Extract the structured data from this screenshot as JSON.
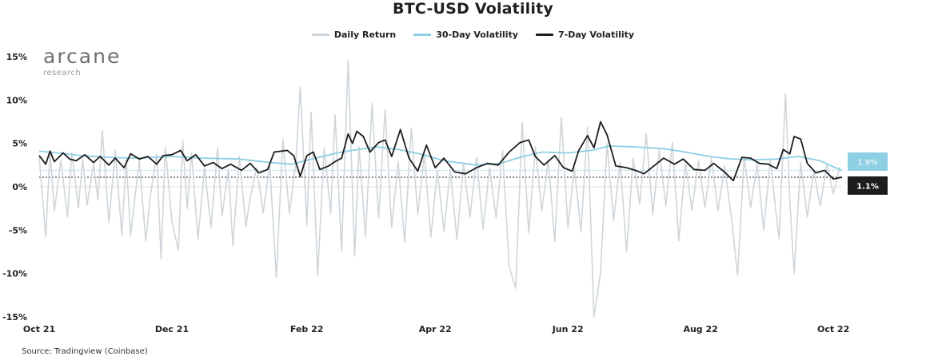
{
  "chart_data": {
    "type": "line",
    "title": "BTC-USD Volatility",
    "source": "Source: Tradingview (Coinbase)",
    "logo": {
      "name": "arcane",
      "sub": "research"
    },
    "colors": {
      "daily": "#cfd6db",
      "vol30": "#8ecfe3",
      "vol7": "#1d1d1d"
    },
    "x_ticks": [
      "Oct 21",
      "Dec 21",
      "Feb 22",
      "Apr 22",
      "Jun 22",
      "Aug 22",
      "Oct 22"
    ],
    "y_ticks": [
      "15%",
      "10%",
      "5%",
      "0%",
      "-5%",
      "-10%",
      "-15%"
    ],
    "ylim": [
      -15,
      15
    ],
    "x_range": [
      "2021-10-01",
      "2022-10-05"
    ],
    "legend_placement": "top-center",
    "series": [
      {
        "name": "Daily Return",
        "points": [
          [
            "2021-10-01",
            3.5
          ],
          [
            "2021-10-04",
            -5.8
          ],
          [
            "2021-10-06",
            4.2
          ],
          [
            "2021-10-08",
            -2.8
          ],
          [
            "2021-10-11",
            3.1
          ],
          [
            "2021-10-14",
            -3.5
          ],
          [
            "2021-10-16",
            4.0
          ],
          [
            "2021-10-19",
            -2.4
          ],
          [
            "2021-10-21",
            3.2
          ],
          [
            "2021-10-23",
            -2.1
          ],
          [
            "2021-10-26",
            2.6
          ],
          [
            "2021-10-28",
            -1.5
          ],
          [
            "2021-10-30",
            6.5
          ],
          [
            "2021-11-02",
            -4.1
          ],
          [
            "2021-11-05",
            4.2
          ],
          [
            "2021-11-08",
            -5.6
          ],
          [
            "2021-11-10",
            3.3
          ],
          [
            "2021-11-12",
            -5.6
          ],
          [
            "2021-11-16",
            3.1
          ],
          [
            "2021-11-19",
            -6.3
          ],
          [
            "2021-11-21",
            -1.2
          ],
          [
            "2021-11-24",
            3.8
          ],
          [
            "2021-11-26",
            -8.3
          ],
          [
            "2021-11-28",
            4.6
          ],
          [
            "2021-12-01",
            -4.0
          ],
          [
            "2021-12-04",
            -7.3
          ],
          [
            "2021-12-06",
            5.3
          ],
          [
            "2021-12-08",
            -2.5
          ],
          [
            "2021-12-10",
            3.9
          ],
          [
            "2021-12-13",
            -6.0
          ],
          [
            "2021-12-16",
            2.2
          ],
          [
            "2021-12-19",
            -4.7
          ],
          [
            "2021-12-22",
            4.5
          ],
          [
            "2021-12-24",
            -3.4
          ],
          [
            "2021-12-27",
            2.1
          ],
          [
            "2021-12-29",
            -6.8
          ],
          [
            "2022-01-01",
            3.5
          ],
          [
            "2022-01-04",
            -4.6
          ],
          [
            "2022-01-06",
            -1.2
          ],
          [
            "2022-01-09",
            2.2
          ],
          [
            "2022-01-12",
            -3.0
          ],
          [
            "2022-01-15",
            2.5
          ],
          [
            "2022-01-18",
            -10.5
          ],
          [
            "2022-01-21",
            5.5
          ],
          [
            "2022-01-24",
            -3.1
          ],
          [
            "2022-01-27",
            3.0
          ],
          [
            "2022-01-29",
            11.5
          ],
          [
            "2022-02-01",
            -4.4
          ],
          [
            "2022-02-03",
            8.6
          ],
          [
            "2022-02-06",
            -10.2
          ],
          [
            "2022-02-09",
            4.5
          ],
          [
            "2022-02-12",
            -3.1
          ],
          [
            "2022-02-14",
            8.3
          ],
          [
            "2022-02-17",
            -7.4
          ],
          [
            "2022-02-20",
            14.5
          ],
          [
            "2022-02-23",
            -8.0
          ],
          [
            "2022-02-25",
            4.6
          ],
          [
            "2022-02-28",
            -5.8
          ],
          [
            "2022-03-03",
            9.6
          ],
          [
            "2022-03-06",
            -3.6
          ],
          [
            "2022-03-09",
            8.9
          ],
          [
            "2022-03-12",
            -4.7
          ],
          [
            "2022-03-15",
            2.9
          ],
          [
            "2022-03-18",
            -6.4
          ],
          [
            "2022-03-21",
            6.8
          ],
          [
            "2022-03-24",
            -3.2
          ],
          [
            "2022-03-27",
            3.7
          ],
          [
            "2022-03-30",
            -5.8
          ],
          [
            "2022-04-02",
            1.9
          ],
          [
            "2022-04-05",
            -5.1
          ],
          [
            "2022-04-08",
            2.0
          ],
          [
            "2022-04-11",
            -6.1
          ],
          [
            "2022-04-14",
            2.6
          ],
          [
            "2022-04-17",
            -3.5
          ],
          [
            "2022-04-20",
            3.4
          ],
          [
            "2022-04-23",
            -4.9
          ],
          [
            "2022-04-26",
            2.2
          ],
          [
            "2022-04-29",
            -3.6
          ],
          [
            "2022-05-02",
            4.2
          ],
          [
            "2022-05-05",
            -9.2
          ],
          [
            "2022-05-08",
            -11.7
          ],
          [
            "2022-05-11",
            7.4
          ],
          [
            "2022-05-14",
            -5.3
          ],
          [
            "2022-05-17",
            4.6
          ],
          [
            "2022-05-20",
            -2.8
          ],
          [
            "2022-05-23",
            3.1
          ],
          [
            "2022-05-26",
            -6.3
          ],
          [
            "2022-05-29",
            8.0
          ],
          [
            "2022-06-01",
            -4.7
          ],
          [
            "2022-06-04",
            2.2
          ],
          [
            "2022-06-07",
            -5.2
          ],
          [
            "2022-06-10",
            6.9
          ],
          [
            "2022-06-13",
            -15.0
          ],
          [
            "2022-06-16",
            -9.9
          ],
          [
            "2022-06-19",
            5.0
          ],
          [
            "2022-06-22",
            -3.9
          ],
          [
            "2022-06-25",
            2.8
          ],
          [
            "2022-06-28",
            -7.5
          ],
          [
            "2022-07-01",
            3.3
          ],
          [
            "2022-07-04",
            -2.0
          ],
          [
            "2022-07-07",
            6.1
          ],
          [
            "2022-07-10",
            -3.2
          ],
          [
            "2022-07-13",
            4.3
          ],
          [
            "2022-07-16",
            -2.2
          ],
          [
            "2022-07-19",
            5.1
          ],
          [
            "2022-07-22",
            -6.2
          ],
          [
            "2022-07-25",
            2.8
          ],
          [
            "2022-07-28",
            -2.7
          ],
          [
            "2022-07-31",
            3.0
          ],
          [
            "2022-08-03",
            -2.4
          ],
          [
            "2022-08-06",
            3.3
          ],
          [
            "2022-08-09",
            -2.8
          ],
          [
            "2022-08-12",
            2.4
          ],
          [
            "2022-08-15",
            -3.2
          ],
          [
            "2022-08-18",
            -10.2
          ],
          [
            "2022-08-21",
            3.4
          ],
          [
            "2022-08-24",
            -2.4
          ],
          [
            "2022-08-27",
            2.7
          ],
          [
            "2022-08-30",
            -5.0
          ],
          [
            "2022-09-02",
            3.1
          ],
          [
            "2022-09-06",
            -6.0
          ],
          [
            "2022-09-09",
            10.7
          ],
          [
            "2022-09-11",
            -1.6
          ],
          [
            "2022-09-13",
            -10.0
          ],
          [
            "2022-09-16",
            2.8
          ],
          [
            "2022-09-19",
            -3.5
          ],
          [
            "2022-09-22",
            1.9
          ],
          [
            "2022-09-25",
            -2.2
          ],
          [
            "2022-09-28",
            2.6
          ],
          [
            "2022-10-01",
            -0.8
          ],
          [
            "2022-10-04",
            2.3
          ]
        ]
      },
      {
        "name": "30-Day Volatility",
        "points": [
          [
            "2021-10-01",
            4.1
          ],
          [
            "2021-10-10",
            3.9
          ],
          [
            "2021-10-20",
            3.6
          ],
          [
            "2021-11-01",
            3.4
          ],
          [
            "2021-11-15",
            3.3
          ],
          [
            "2021-12-01",
            3.5
          ],
          [
            "2021-12-15",
            3.3
          ],
          [
            "2022-01-01",
            3.2
          ],
          [
            "2022-01-15",
            2.8
          ],
          [
            "2022-01-25",
            2.6
          ],
          [
            "2022-02-05",
            3.3
          ],
          [
            "2022-02-15",
            3.9
          ],
          [
            "2022-02-22",
            4.2
          ],
          [
            "2022-03-05",
            4.6
          ],
          [
            "2022-03-15",
            4.3
          ],
          [
            "2022-03-25",
            3.8
          ],
          [
            "2022-04-05",
            3.0
          ],
          [
            "2022-04-20",
            2.5
          ],
          [
            "2022-05-01",
            2.7
          ],
          [
            "2022-05-10",
            3.4
          ],
          [
            "2022-05-20",
            4.0
          ],
          [
            "2022-06-01",
            3.9
          ],
          [
            "2022-06-12",
            4.2
          ],
          [
            "2022-06-20",
            4.7
          ],
          [
            "2022-07-01",
            4.6
          ],
          [
            "2022-07-15",
            4.4
          ],
          [
            "2022-07-25",
            4.0
          ],
          [
            "2022-08-05",
            3.5
          ],
          [
            "2022-08-15",
            3.2
          ],
          [
            "2022-08-25",
            3.1
          ],
          [
            "2022-09-05",
            3.2
          ],
          [
            "2022-09-15",
            3.5
          ],
          [
            "2022-09-25",
            3.0
          ],
          [
            "2022-10-01",
            2.3
          ],
          [
            "2022-10-05",
            1.9
          ]
        ]
      },
      {
        "name": "7-Day Volatility",
        "points": [
          [
            "2021-10-01",
            3.6
          ],
          [
            "2021-10-04",
            2.6
          ],
          [
            "2021-10-06",
            4.1
          ],
          [
            "2021-10-08",
            2.9
          ],
          [
            "2021-10-12",
            3.9
          ],
          [
            "2021-10-15",
            3.2
          ],
          [
            "2021-10-18",
            3.0
          ],
          [
            "2021-10-22",
            3.7
          ],
          [
            "2021-10-26",
            2.8
          ],
          [
            "2021-10-29",
            3.5
          ],
          [
            "2021-11-02",
            2.5
          ],
          [
            "2021-11-05",
            3.3
          ],
          [
            "2021-11-09",
            2.2
          ],
          [
            "2021-11-12",
            3.8
          ],
          [
            "2021-11-16",
            3.2
          ],
          [
            "2021-11-20",
            3.5
          ],
          [
            "2021-11-24",
            2.6
          ],
          [
            "2021-11-27",
            3.6
          ],
          [
            "2021-12-01",
            3.7
          ],
          [
            "2021-12-05",
            4.2
          ],
          [
            "2021-12-08",
            3.0
          ],
          [
            "2021-12-12",
            3.7
          ],
          [
            "2021-12-16",
            2.4
          ],
          [
            "2021-12-20",
            2.8
          ],
          [
            "2021-12-24",
            2.1
          ],
          [
            "2021-12-28",
            2.6
          ],
          [
            "2022-01-02",
            1.9
          ],
          [
            "2022-01-06",
            2.7
          ],
          [
            "2022-01-10",
            1.6
          ],
          [
            "2022-01-14",
            2.0
          ],
          [
            "2022-01-17",
            4.0
          ],
          [
            "2022-01-23",
            4.2
          ],
          [
            "2022-01-26",
            3.6
          ],
          [
            "2022-01-29",
            1.2
          ],
          [
            "2022-02-01",
            3.6
          ],
          [
            "2022-02-04",
            4.0
          ],
          [
            "2022-02-07",
            2.0
          ],
          [
            "2022-02-11",
            2.4
          ],
          [
            "2022-02-14",
            2.9
          ],
          [
            "2022-02-17",
            3.3
          ],
          [
            "2022-02-20",
            6.1
          ],
          [
            "2022-02-22",
            5.0
          ],
          [
            "2022-02-24",
            6.4
          ],
          [
            "2022-02-27",
            5.8
          ],
          [
            "2022-03-02",
            4.0
          ],
          [
            "2022-03-06",
            5.1
          ],
          [
            "2022-03-09",
            5.4
          ],
          [
            "2022-03-12",
            3.5
          ],
          [
            "2022-03-16",
            6.6
          ],
          [
            "2022-03-20",
            3.3
          ],
          [
            "2022-03-24",
            1.8
          ],
          [
            "2022-03-28",
            4.8
          ],
          [
            "2022-04-01",
            2.2
          ],
          [
            "2022-04-05",
            3.3
          ],
          [
            "2022-04-10",
            1.7
          ],
          [
            "2022-04-15",
            1.5
          ],
          [
            "2022-04-20",
            2.2
          ],
          [
            "2022-04-25",
            2.7
          ],
          [
            "2022-04-30",
            2.5
          ],
          [
            "2022-05-05",
            4.0
          ],
          [
            "2022-05-10",
            5.1
          ],
          [
            "2022-05-14",
            5.4
          ],
          [
            "2022-05-17",
            3.5
          ],
          [
            "2022-05-21",
            2.5
          ],
          [
            "2022-05-26",
            3.6
          ],
          [
            "2022-05-30",
            2.2
          ],
          [
            "2022-06-03",
            1.8
          ],
          [
            "2022-06-06",
            4.2
          ],
          [
            "2022-06-10",
            5.9
          ],
          [
            "2022-06-13",
            4.5
          ],
          [
            "2022-06-16",
            7.5
          ],
          [
            "2022-06-19",
            6.0
          ],
          [
            "2022-06-23",
            2.4
          ],
          [
            "2022-06-28",
            2.2
          ],
          [
            "2022-07-02",
            1.9
          ],
          [
            "2022-07-06",
            1.5
          ],
          [
            "2022-07-11",
            2.5
          ],
          [
            "2022-07-15",
            3.3
          ],
          [
            "2022-07-20",
            2.6
          ],
          [
            "2022-07-24",
            3.2
          ],
          [
            "2022-07-29",
            2.0
          ],
          [
            "2022-08-03",
            1.9
          ],
          [
            "2022-08-07",
            2.7
          ],
          [
            "2022-08-12",
            1.7
          ],
          [
            "2022-08-16",
            0.7
          ],
          [
            "2022-08-20",
            3.4
          ],
          [
            "2022-08-24",
            3.3
          ],
          [
            "2022-08-28",
            2.7
          ],
          [
            "2022-09-01",
            2.6
          ],
          [
            "2022-09-05",
            2.1
          ],
          [
            "2022-09-08",
            4.3
          ],
          [
            "2022-09-11",
            3.8
          ],
          [
            "2022-09-13",
            5.8
          ],
          [
            "2022-09-16",
            5.5
          ],
          [
            "2022-09-19",
            2.7
          ],
          [
            "2022-09-23",
            1.6
          ],
          [
            "2022-09-27",
            1.9
          ],
          [
            "2022-10-01",
            0.9
          ],
          [
            "2022-10-05",
            1.1
          ]
        ]
      }
    ],
    "reference_lines": [
      {
        "series": "30-Day Volatility",
        "value": 1.9,
        "label": "1.9%"
      },
      {
        "series": "7-Day Volatility",
        "value": 1.1,
        "label": "1.1%"
      }
    ]
  }
}
